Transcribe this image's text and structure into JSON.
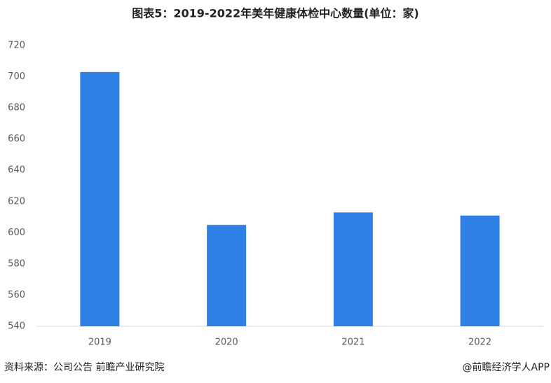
{
  "chart_data": {
    "type": "bar",
    "title": "图表5：2019-2022年美年健康体检中心数量(单位：家)",
    "categories": [
      "2019",
      "2020",
      "2021",
      "2022"
    ],
    "values": [
      703,
      605,
      613,
      611
    ],
    "color": "#2f80e4",
    "ylim": [
      540,
      720
    ],
    "yticks": [
      540,
      560,
      580,
      600,
      620,
      640,
      660,
      680,
      700,
      720
    ],
    "grid": false,
    "source": "资料来源：公司公告 前瞻产业研究院",
    "credit": "@前瞻经济学人APP"
  }
}
